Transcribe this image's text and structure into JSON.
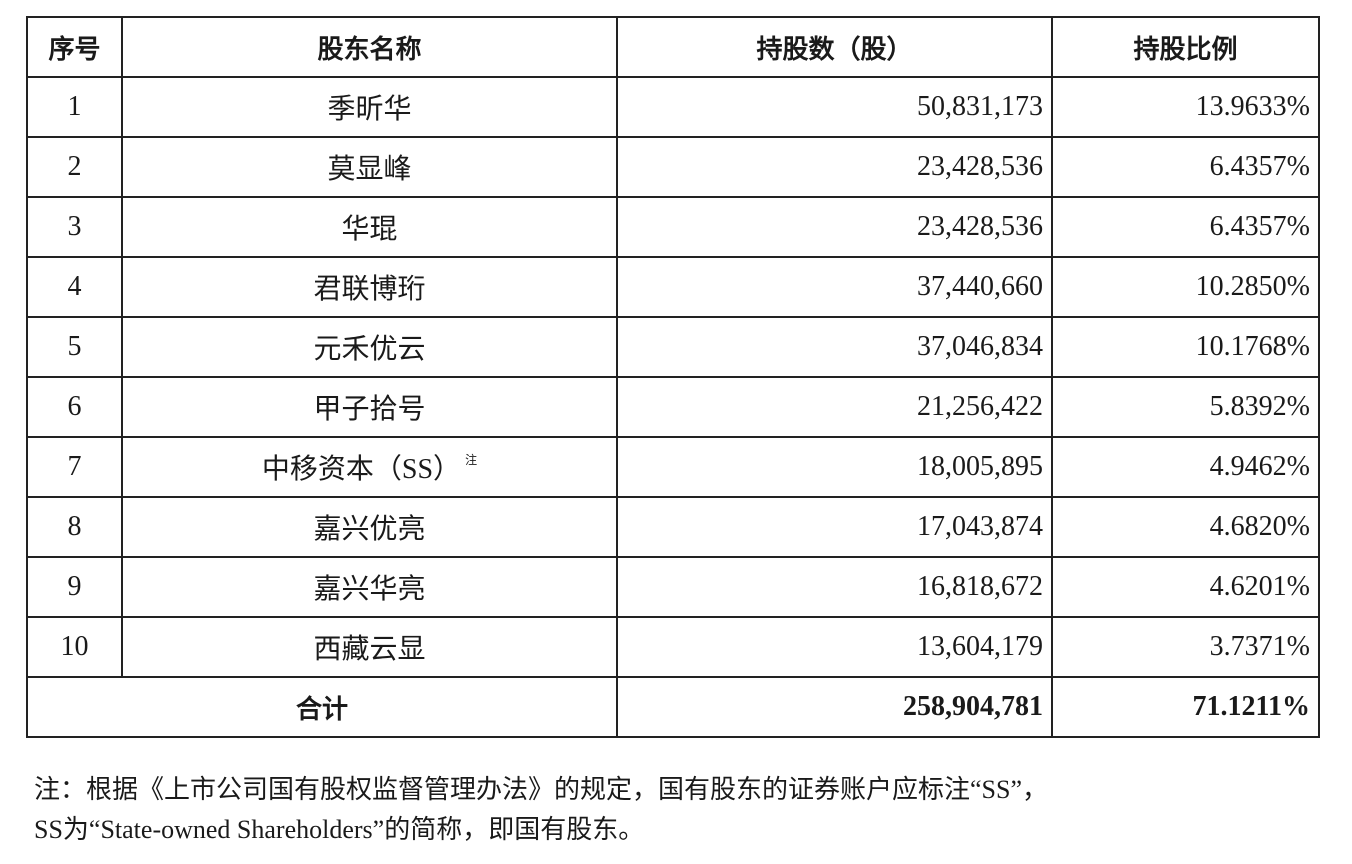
{
  "table": {
    "headers": [
      "序号",
      "股东名称",
      "持股数（股）",
      "持股比例"
    ],
    "rows": [
      {
        "no": "1",
        "name": "季昕华",
        "mark": "",
        "shares": "50,831,173",
        "ratio": "13.9633%"
      },
      {
        "no": "2",
        "name": "莫显峰",
        "mark": "",
        "shares": "23,428,536",
        "ratio": "6.4357%"
      },
      {
        "no": "3",
        "name": "华琨",
        "mark": "",
        "shares": "23,428,536",
        "ratio": "6.4357%"
      },
      {
        "no": "4",
        "name": "君联博珩",
        "mark": "",
        "shares": "37,440,660",
        "ratio": "10.2850%"
      },
      {
        "no": "5",
        "name": "元禾优云",
        "mark": "",
        "shares": "37,046,834",
        "ratio": "10.1768%"
      },
      {
        "no": "6",
        "name": "甲子拾号",
        "mark": "",
        "shares": "21,256,422",
        "ratio": "5.8392%"
      },
      {
        "no": "7",
        "name": "中移资本（SS）",
        "mark": "注",
        "shares": "18,005,895",
        "ratio": "4.9462%"
      },
      {
        "no": "8",
        "name": "嘉兴优亮",
        "mark": "",
        "shares": "17,043,874",
        "ratio": "4.6820%"
      },
      {
        "no": "9",
        "name": "嘉兴华亮",
        "mark": "",
        "shares": "16,818,672",
        "ratio": "4.6201%"
      },
      {
        "no": "10",
        "name": "西藏云显",
        "mark": "",
        "shares": "13,604,179",
        "ratio": "3.7371%"
      }
    ],
    "total": {
      "label": "合计",
      "shares": "258,904,781",
      "ratio": "71.1211%"
    }
  },
  "note": {
    "line1": "注：根据《上市公司国有股权监督管理办法》的规定，国有股东的证券账户应标注“SS”，",
    "line2": "SS为“State-owned Shareholders”的简称，即国有股东。"
  }
}
